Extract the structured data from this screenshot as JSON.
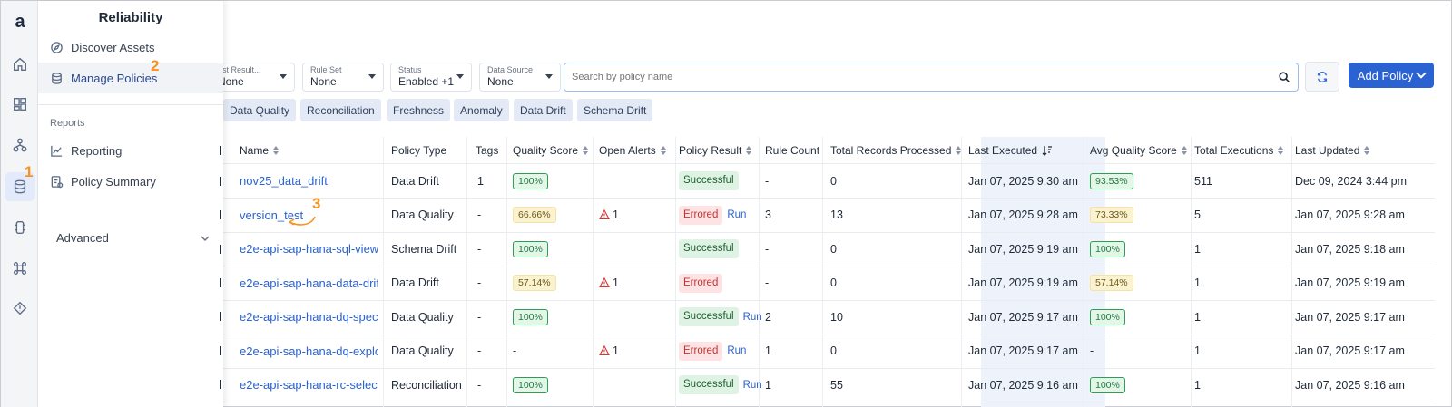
{
  "rail": {
    "logo": "a",
    "items": [
      {
        "icon": "home-icon"
      },
      {
        "icon": "dashboard-icon"
      },
      {
        "icon": "hierarchy-icon"
      },
      {
        "icon": "database-icon"
      },
      {
        "icon": "chip-icon"
      },
      {
        "icon": "command-icon"
      },
      {
        "icon": "warning-diamond-icon"
      }
    ]
  },
  "flyout": {
    "title": "Reliability",
    "discover_label": "Discover Assets",
    "manage_label": "Manage Policies",
    "reports_section": "Reports",
    "reporting_label": "Reporting",
    "policy_summary_label": "Policy Summary",
    "advanced_label": "Advanced"
  },
  "steps": {
    "one": "1",
    "two": "2",
    "three": "3"
  },
  "filters": {
    "last_result_label": "ast Result...",
    "last_result_value": "None",
    "rule_set_label": "Rule Set",
    "rule_set_value": "None",
    "status_label": "Status",
    "status_value": "Enabled +1",
    "data_source_label": "Data Source",
    "data_source_value": "None"
  },
  "search": {
    "placeholder": "Search by policy name"
  },
  "add_policy_label": "Add Policy",
  "chips": [
    "Data Quality",
    "Reconciliation",
    "Freshness",
    "Anomaly",
    "Data Drift",
    "Schema Drift"
  ],
  "table": {
    "headers": {
      "name": "Name",
      "policy_type": "Policy Type",
      "tags": "Tags",
      "quality_score": "Quality Score",
      "open_alerts": "Open Alerts",
      "policy_result": "Policy Result",
      "rule_count": "Rule Count",
      "total_records": "Total Records Processed",
      "last_executed": "Last Executed",
      "avg_quality": "Avg Quality Score",
      "total_exec": "Total Executions",
      "last_updated": "Last Updated"
    },
    "rows": [
      {
        "name": "nov25_data_drift",
        "type": "Data Drift",
        "tags": "1",
        "quality": "100%",
        "quality_color": "green",
        "alerts": "",
        "result": "Successful",
        "run": "",
        "rules": "-",
        "records": "0",
        "last_executed": "Jan 07, 2025 9:30 am",
        "avg": "93.53%",
        "avg_color": "green",
        "executions": "511",
        "updated": "Dec 09, 2024 3:44 pm"
      },
      {
        "name": "version_test",
        "type": "Data Quality",
        "tags": "-",
        "quality": "66.66%",
        "quality_color": "yellow",
        "alerts": "1",
        "result": "Errored",
        "run": "Run",
        "rules": "3",
        "records": "13",
        "last_executed": "Jan 07, 2025 9:28 am",
        "avg": "73.33%",
        "avg_color": "yellow",
        "executions": "5",
        "updated": "Jan 07, 2025 9:28 am"
      },
      {
        "name": "e2e-api-sap-hana-sql-view",
        "type": "Schema Drift",
        "tags": "-",
        "quality": "100%",
        "quality_color": "green",
        "alerts": "",
        "result": "Successful",
        "run": "",
        "rules": "-",
        "records": "0",
        "last_executed": "Jan 07, 2025 9:19 am",
        "avg": "100%",
        "avg_color": "green",
        "executions": "1",
        "updated": "Jan 07, 2025 9:18 am"
      },
      {
        "name": "e2e-api-sap-hana-data-drif",
        "type": "Data Drift",
        "tags": "-",
        "quality": "57.14%",
        "quality_color": "yellow",
        "alerts": "1",
        "result": "Errored",
        "run": "",
        "rules": "-",
        "records": "0",
        "last_executed": "Jan 07, 2025 9:19 am",
        "avg": "57.14%",
        "avg_color": "yellow",
        "executions": "1",
        "updated": "Jan 07, 2025 9:19 am"
      },
      {
        "name": "e2e-api-sap-hana-dq-spec",
        "type": "Data Quality",
        "tags": "-",
        "quality": "100%",
        "quality_color": "green",
        "alerts": "",
        "result": "Successful",
        "run": "Run",
        "rules": "2",
        "records": "10",
        "last_executed": "Jan 07, 2025 9:17 am",
        "avg": "100%",
        "avg_color": "green",
        "executions": "1",
        "updated": "Jan 07, 2025 9:17 am"
      },
      {
        "name": "e2e-api-sap-hana-dq-explo",
        "type": "Data Quality",
        "tags": "-",
        "quality": "-",
        "quality_color": "none",
        "alerts": "1",
        "result": "Errored",
        "run": "Run",
        "rules": "1",
        "records": "0",
        "last_executed": "Jan 07, 2025 9:17 am",
        "avg": "-",
        "avg_color": "none",
        "executions": "1",
        "updated": "Jan 07, 2025 9:17 am"
      },
      {
        "name": "e2e-api-sap-hana-rc-selec",
        "type": "Reconciliation",
        "tags": "-",
        "quality": "100%",
        "quality_color": "green",
        "alerts": "",
        "result": "Successful",
        "run": "Run",
        "rules": "1",
        "records": "55",
        "last_executed": "Jan 07, 2025 9:16 am",
        "avg": "100%",
        "avg_color": "green",
        "executions": "1",
        "updated": "Jan 07, 2025 9:16 am"
      }
    ]
  }
}
